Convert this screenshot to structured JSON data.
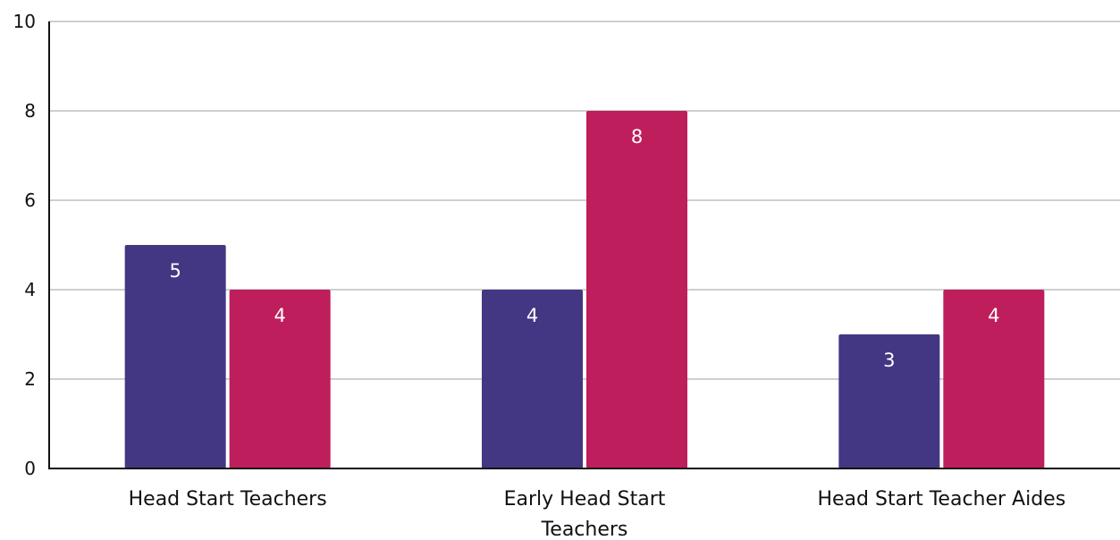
{
  "chart_data": {
    "type": "bar",
    "categories": [
      [
        "Head Start Teachers"
      ],
      [
        "Early Head Start",
        "Teachers"
      ],
      [
        "Head Start Teacher Aides"
      ]
    ],
    "series": [
      {
        "values": [
          5,
          4,
          3
        ],
        "color": "#433784"
      },
      {
        "values": [
          4,
          8,
          4
        ],
        "color": "#be1e5c"
      }
    ],
    "ylim": [
      0,
      10
    ],
    "yticks": [
      0,
      2,
      4,
      6,
      8,
      10
    ],
    "grid": true,
    "data_labels": true
  }
}
